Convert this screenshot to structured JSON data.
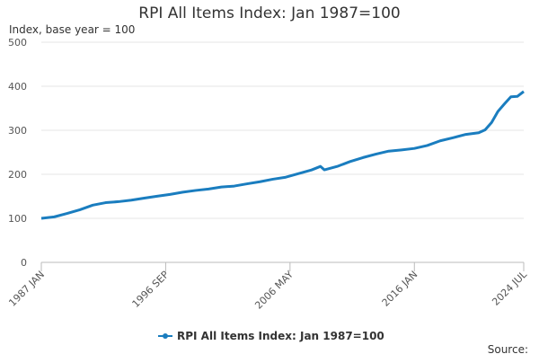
{
  "chart_data": {
    "type": "line",
    "title": "RPI All Items Index: Jan 1987=100",
    "subtitle": "Index, base year = 100",
    "source": "Source:",
    "x": [
      1987,
      1988,
      1989,
      1990,
      1991,
      1992,
      1993,
      1994,
      1995,
      1996,
      1997,
      1998,
      1999,
      2000,
      2001,
      2002,
      2003,
      2004,
      2005,
      2006,
      2007,
      2008,
      2008.7,
      2009,
      2010,
      2011,
      2012,
      2013,
      2014,
      2015,
      2016,
      2017,
      2018,
      2019,
      2020,
      2021,
      2021.5,
      2022,
      2022.5,
      2023,
      2023.5,
      2024,
      2024.5
    ],
    "series": [
      {
        "name": "RPI All Items Index: Jan 1987=100",
        "color": "#1a7dbf",
        "values": [
          100,
          103.3,
          111,
          119.5,
          130,
          135.6,
          137.9,
          141.3,
          146,
          150.2,
          154.4,
          159.5,
          163.4,
          166.6,
          171.1,
          173.3,
          178.4,
          183.1,
          188.9,
          193.4,
          201.6,
          209.8,
          218,
          210.1,
          217.9,
          229,
          238,
          245.8,
          252.6,
          255.4,
          258.8,
          265.5,
          276,
          283,
          290.6,
          294.3,
          301,
          317.7,
          343,
          360,
          376,
          377,
          388
        ]
      }
    ],
    "xlim": [
      1987,
      2024.5
    ],
    "xticks": [
      {
        "value": 1987,
        "label": "1987 JAN"
      },
      {
        "value": 1996.667,
        "label": "1996 SEP"
      },
      {
        "value": 2006.333,
        "label": "2006 MAY"
      },
      {
        "value": 2016,
        "label": "2016 JAN"
      },
      {
        "value": 2024.5,
        "label": "2024 JUL"
      }
    ],
    "ylim": [
      0,
      500
    ],
    "yticks": [
      0,
      100,
      200,
      300,
      400,
      500
    ],
    "grid": true
  }
}
